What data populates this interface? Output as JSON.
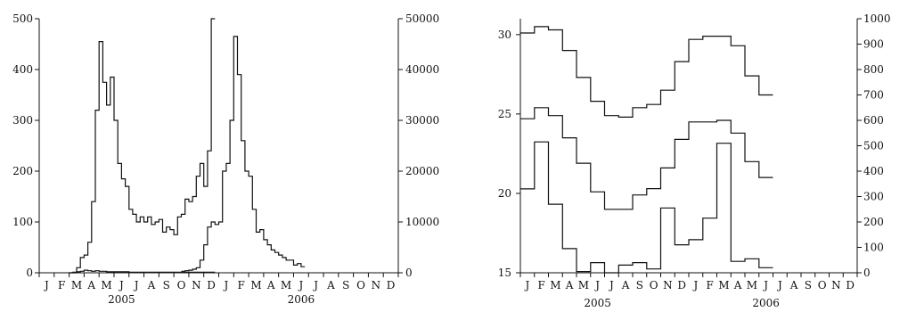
{
  "chart_data": [
    {
      "type": "line",
      "step": true,
      "title": "",
      "xlabel": "",
      "x_categories": [
        "J",
        "F",
        "M",
        "A",
        "M",
        "J",
        "J",
        "A",
        "S",
        "O",
        "N",
        "D",
        "J",
        "F",
        "M",
        "A",
        "M",
        "J",
        "J",
        "A",
        "S",
        "O",
        "N",
        "D"
      ],
      "x_years": [
        {
          "label": "2005",
          "month_index": 5.5
        },
        {
          "label": "2006",
          "month_index": 17.5
        }
      ],
      "left_axis": {
        "ylim": [
          0,
          500
        ],
        "ticks": [
          0,
          100,
          200,
          300,
          400,
          500
        ]
      },
      "right_axis": {
        "ylim": [
          0,
          50000
        ],
        "ticks": [
          0,
          10000,
          20000,
          30000,
          40000,
          50000
        ]
      },
      "series": [
        {
          "axis": "left",
          "step_width": 0.25,
          "x_start": 2.0,
          "values": [
            0,
            0,
            10,
            30,
            35,
            60,
            140,
            320,
            455,
            375,
            330,
            385,
            300,
            215,
            185,
            170,
            125,
            115,
            100,
            110,
            100,
            110,
            95,
            100,
            105,
            80,
            90,
            85,
            75,
            110,
            115,
            145,
            140,
            150,
            190,
            215,
            170,
            240,
            500
          ]
        },
        {
          "axis": "right",
          "step_width": 0.25,
          "x_start": 9.5,
          "values": [
            300,
            400,
            500,
            700,
            1000,
            2500,
            5500,
            9000,
            10000,
            9500,
            10000,
            20000,
            21500,
            30000,
            46500,
            39000,
            26000,
            20000,
            19000,
            12500,
            8000,
            8500,
            6500,
            5500,
            4500,
            4000,
            3500,
            3000,
            2500,
            2500,
            1500,
            1800,
            1200
          ]
        },
        {
          "axis": "left",
          "step_width": 0.25,
          "x_start": 2.0,
          "values": [
            0,
            1,
            2,
            3,
            5,
            4,
            3,
            4,
            3,
            3,
            2,
            2,
            2,
            2,
            2,
            2,
            1,
            1,
            1,
            1,
            1,
            1,
            1,
            1,
            1,
            1,
            1,
            1,
            1,
            1,
            1,
            1,
            1,
            1,
            1,
            1,
            1,
            1,
            1
          ]
        }
      ]
    },
    {
      "type": "line",
      "step": true,
      "title": "",
      "xlabel": "",
      "x_categories": [
        "J",
        "F",
        "M",
        "A",
        "M",
        "J",
        "J",
        "A",
        "S",
        "O",
        "N",
        "D",
        "J",
        "F",
        "M",
        "A",
        "M",
        "J",
        "J",
        "A",
        "S",
        "O",
        "N",
        "D"
      ],
      "x_years": [
        {
          "label": "2005",
          "month_index": 5.5
        },
        {
          "label": "2006",
          "month_index": 17.5
        }
      ],
      "left_axis": {
        "ylim": [
          15,
          31
        ],
        "ticks": [
          15,
          20,
          25,
          30
        ]
      },
      "right_axis": {
        "ylim": [
          0,
          1000
        ],
        "ticks": [
          0,
          100,
          200,
          300,
          400,
          500,
          600,
          700,
          800,
          900,
          1000
        ]
      },
      "series": [
        {
          "axis": "left",
          "step_width": 1,
          "x_start": 0,
          "values": [
            30.1,
            30.5,
            30.3,
            29.0,
            27.3,
            25.8,
            24.9,
            24.8,
            25.4,
            25.6,
            26.5,
            28.3,
            29.7,
            29.9,
            29.9,
            29.3,
            27.4,
            26.2
          ]
        },
        {
          "axis": "left",
          "step_width": 1,
          "x_start": 0,
          "values": [
            24.7,
            25.4,
            24.9,
            23.5,
            21.9,
            20.1,
            19.0,
            19.0,
            19.9,
            20.3,
            21.6,
            23.4,
            24.5,
            24.5,
            24.6,
            23.8,
            22.0,
            21.0
          ]
        },
        {
          "axis": "right",
          "step_width": 1,
          "x_start": 0,
          "values": [
            330,
            515,
            270,
            95,
            5,
            40,
            0,
            30,
            40,
            15,
            255,
            110,
            130,
            215,
            510,
            45,
            55,
            20
          ]
        }
      ]
    }
  ]
}
